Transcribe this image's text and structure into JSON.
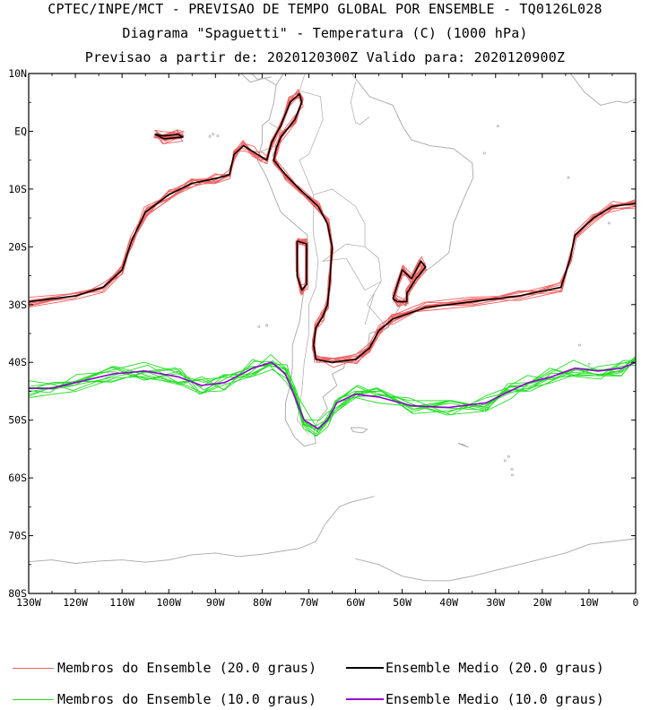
{
  "titles": {
    "line1": "CPTEC/INPE/MCT - PREVISAO DE TEMPO GLOBAL POR ENSEMBLE - TQ0126L028",
    "line2": "Diagrama \"Spaguetti\" - Temperatura (C) (1000 hPa)",
    "line3": "Previsao a partir de: 2020120300Z  Valido para: 2020120900Z"
  },
  "colors": {
    "member20": "#f06060",
    "mean20": "#000000",
    "member10": "#22dd22",
    "mean10": "#9400d3",
    "coast": "#a8a8a8"
  },
  "chart_data": {
    "type": "line",
    "title": "Diagrama \"Spaguetti\" - Temperatura (C) (1000 hPa)",
    "xlim": [
      -130,
      0
    ],
    "ylim": [
      -80,
      10
    ],
    "x_ticks": [
      {
        "v": -130,
        "label": "130W"
      },
      {
        "v": -120,
        "label": "120W"
      },
      {
        "v": -110,
        "label": "110W"
      },
      {
        "v": -100,
        "label": "100W"
      },
      {
        "v": -90,
        "label": "90W"
      },
      {
        "v": -80,
        "label": "80W"
      },
      {
        "v": -70,
        "label": "70W"
      },
      {
        "v": -60,
        "label": "60W"
      },
      {
        "v": -50,
        "label": "50W"
      },
      {
        "v": -40,
        "label": "40W"
      },
      {
        "v": -30,
        "label": "30W"
      },
      {
        "v": -20,
        "label": "20W"
      },
      {
        "v": -10,
        "label": "10W"
      },
      {
        "v": 0,
        "label": "0"
      }
    ],
    "y_ticks": [
      {
        "v": 10,
        "label": "10N"
      },
      {
        "v": 0,
        "label": "EQ"
      },
      {
        "v": -10,
        "label": "10S"
      },
      {
        "v": -20,
        "label": "20S"
      },
      {
        "v": -30,
        "label": "30S"
      },
      {
        "v": -40,
        "label": "40S"
      },
      {
        "v": -50,
        "label": "50S"
      },
      {
        "v": -60,
        "label": "60S"
      },
      {
        "v": -70,
        "label": "70S"
      },
      {
        "v": -80,
        "label": "80S"
      }
    ],
    "series": [
      {
        "name": "Ensemble Medio (20.0 graus)",
        "segments": [
          [
            [
              -130,
              -29.5
            ],
            [
              -120,
              -28.5
            ],
            [
              -114,
              -27
            ],
            [
              -110,
              -24
            ],
            [
              -108,
              -19
            ],
            [
              -105,
              -14
            ],
            [
              -100,
              -11
            ],
            [
              -95,
              -9
            ],
            [
              -90,
              -8.2
            ],
            [
              -87,
              -7.5
            ],
            [
              -86,
              -4
            ],
            [
              -84,
              -2.5
            ],
            [
              -82,
              -3.5
            ],
            [
              -80,
              -4.5
            ],
            [
              -79,
              -5
            ],
            [
              -78,
              -2
            ],
            [
              -76,
              1
            ],
            [
              -74,
              5
            ],
            [
              -72,
              6.5
            ],
            [
              -71.5,
              5
            ],
            [
              -73,
              2
            ],
            [
              -76,
              -1
            ],
            [
              -77,
              -3
            ],
            [
              -77.5,
              -5
            ],
            [
              -75,
              -7.5
            ],
            [
              -72,
              -10
            ],
            [
              -68,
              -13
            ],
            [
              -66,
              -16
            ],
            [
              -65,
              -20
            ],
            [
              -65.5,
              -26
            ],
            [
              -66,
              -30
            ],
            [
              -67,
              -32
            ],
            [
              -68.5,
              -34
            ],
            [
              -69,
              -37
            ],
            [
              -68.5,
              -39.5
            ],
            [
              -65,
              -40
            ],
            [
              -60,
              -39.5
            ],
            [
              -57,
              -37.5
            ],
            [
              -55,
              -34.5
            ],
            [
              -52,
              -32.5
            ],
            [
              -45,
              -30.5
            ],
            [
              -35,
              -29.5
            ],
            [
              -25,
              -28.5
            ],
            [
              -16,
              -27
            ],
            [
              -14,
              -22
            ],
            [
              -13,
              -18
            ],
            [
              -9,
              -15
            ],
            [
              -5,
              -13
            ],
            [
              0,
              -12.5
            ]
          ],
          [
            [
              -72.5,
              -19
            ],
            [
              -70.5,
              -19.5
            ],
            [
              -70.5,
              -26.5
            ],
            [
              -71.5,
              -27.5
            ],
            [
              -72.5,
              -25
            ],
            [
              -72.5,
              -19
            ]
          ],
          [
            [
              -52,
              -29
            ],
            [
              -50,
              -24
            ],
            [
              -48,
              -25.5
            ],
            [
              -46,
              -22.5
            ],
            [
              -45,
              -23.5
            ],
            [
              -47,
              -25.5
            ],
            [
              -49,
              -28
            ],
            [
              -49,
              -29.5
            ],
            [
              -51,
              -29.5
            ],
            [
              -52,
              -29
            ]
          ],
          [
            [
              -103,
              -0.5
            ],
            [
              -101,
              -0.8
            ],
            [
              -98,
              -0.5
            ],
            [
              -97,
              -1
            ],
            [
              -101,
              -1.3
            ],
            [
              -103,
              -0.5
            ]
          ]
        ]
      },
      {
        "name": "Ensemble Medio (10.0 graus)",
        "segments": [
          [
            [
              -130,
              -44.5
            ],
            [
              -125,
              -44.5
            ],
            [
              -120,
              -43.5
            ],
            [
              -112,
              -42
            ],
            [
              -105,
              -41.5
            ],
            [
              -98,
              -42.5
            ],
            [
              -93,
              -44
            ],
            [
              -88,
              -43.5
            ],
            [
              -82,
              -41
            ],
            [
              -78,
              -40
            ],
            [
              -75,
              -42
            ],
            [
              -73,
              -46
            ],
            [
              -71,
              -50
            ],
            [
              -68,
              -51.5
            ],
            [
              -66,
              -50
            ],
            [
              -64,
              -47
            ],
            [
              -60,
              -45.5
            ],
            [
              -55,
              -46
            ],
            [
              -48,
              -47.5
            ],
            [
              -40,
              -47.8
            ],
            [
              -32,
              -47
            ],
            [
              -27,
              -45
            ],
            [
              -23,
              -43.5
            ],
            [
              -18,
              -42.5
            ],
            [
              -13,
              -41
            ],
            [
              -8,
              -41.5
            ],
            [
              -3,
              -41
            ],
            [
              0,
              -40
            ]
          ]
        ]
      }
    ],
    "legend": [
      {
        "label": "Membros do Ensemble (20.0 graus)",
        "color_key": "member20"
      },
      {
        "label": "Ensemble Medio (20.0 graus)",
        "color_key": "mean20"
      },
      {
        "label": "Membros do Ensemble (10.0 graus)",
        "color_key": "member10"
      },
      {
        "label": "Ensemble Medio (10.0 graus)",
        "color_key": "mean10"
      }
    ]
  }
}
